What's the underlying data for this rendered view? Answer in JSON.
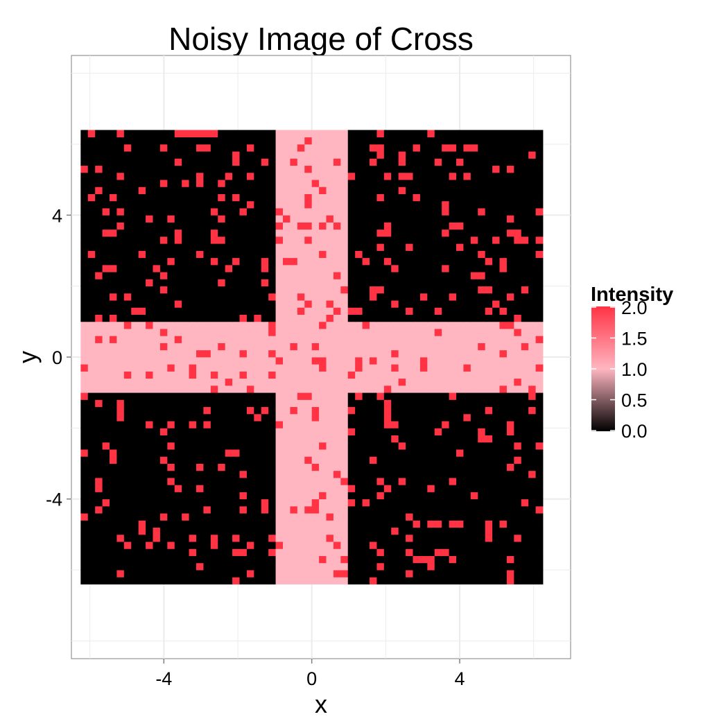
{
  "chart_data": {
    "type": "heatmap",
    "title": "Noisy Image of Cross",
    "xlabel": "x",
    "ylabel": "y",
    "xlim": [
      -6.5,
      7.0
    ],
    "ylim": [
      -8.5,
      8.5
    ],
    "x_range": [
      -6.25,
      6.25
    ],
    "y_range": [
      -6.4,
      6.4
    ],
    "grid": [
      64,
      64
    ],
    "x_ticks": [
      -4,
      0,
      4
    ],
    "y_ticks": [
      -4,
      0,
      4
    ],
    "x_tick_labels": [
      "-4",
      "0",
      "4"
    ],
    "y_tick_labels": [
      "-4",
      "0",
      "4"
    ],
    "base_pattern": {
      "cross_intensity": 1.0,
      "background_intensity": 0.0,
      "cross_x_halfwidth": 1.0,
      "cross_y_halfwidth": 1.0
    },
    "noise": {
      "value": 2.0,
      "fraction": 0.1
    },
    "colorscale": {
      "title": "Intensity",
      "min": 0.0,
      "max": 2.0,
      "ticks": [
        0.0,
        0.5,
        1.0,
        1.5,
        2.0
      ],
      "tick_labels": [
        "0.0",
        "0.5",
        "1.0",
        "1.5",
        "2.0"
      ],
      "low_color": "#000000",
      "mid_color": "#ffb6c1",
      "high_color": "#ff3344"
    },
    "panel_background": "#ffffff",
    "grid_lines": true,
    "grid_color": "#ebebeb",
    "legend_position": "right"
  }
}
